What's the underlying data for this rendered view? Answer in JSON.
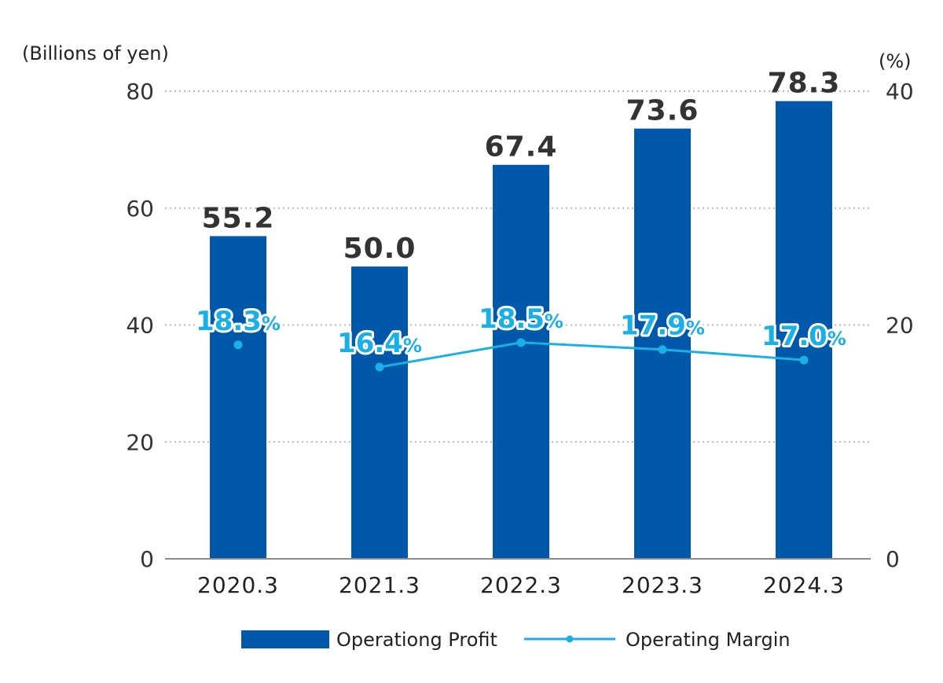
{
  "chart_data": {
    "type": "bar",
    "categories": [
      "2020.3",
      "2021.3",
      "2022.3",
      "2023.3",
      "2024.3"
    ],
    "series": [
      {
        "name": "Operationg Profit",
        "kind": "bar",
        "axis": "left",
        "values": [
          55.2,
          50.0,
          67.4,
          73.6,
          78.3
        ],
        "labels": [
          "55.2",
          "50.0",
          "67.4",
          "73.6",
          "78.3"
        ],
        "color": "#0058aa"
      },
      {
        "name": "Operating Margin",
        "kind": "line",
        "axis": "right",
        "values": [
          18.3,
          16.4,
          18.5,
          17.9,
          17.0
        ],
        "labels": [
          "18.3",
          "16.4",
          "18.5",
          "17.9",
          "17.0"
        ],
        "label_suffix": "%",
        "color": "#1ab0e6"
      }
    ],
    "left_axis": {
      "label": "(Billions of yen)",
      "ylim": [
        0,
        80
      ],
      "ticks": [
        "0",
        "20",
        "40",
        "60",
        "80"
      ]
    },
    "right_axis": {
      "label": "(%)",
      "ylim": [
        0,
        40
      ],
      "ticks": [
        "0",
        "20",
        "40"
      ]
    },
    "grid": true,
    "legend_position": "bottom-center"
  }
}
